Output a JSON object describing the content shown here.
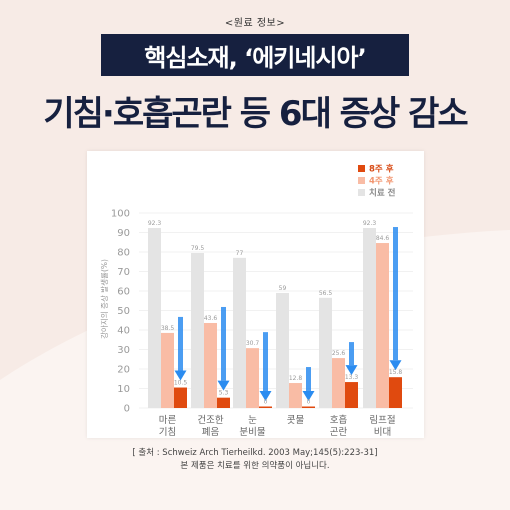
{
  "header": {
    "source_tag": "<원료 정보>",
    "title": "핵심소재, ‘에키네시아’",
    "headline": "기침·호흡곤란 등 6대 증상 감소"
  },
  "colors": {
    "background": "#f7ebe6",
    "title_bg": "#16203f",
    "series_8w": "#e04a0f",
    "series_4w": "#f9bca5",
    "series_base": "#e4e4e4",
    "arrow": "#2b8cf0"
  },
  "chart_data": {
    "type": "bar",
    "ylabel": "강아지의 증상 발생률(%)",
    "ylim": [
      0,
      100
    ],
    "yticks": [
      0,
      10,
      20,
      30,
      40,
      50,
      60,
      70,
      80,
      90,
      100
    ],
    "grid": true,
    "legend_position": "top-right",
    "categories": [
      [
        "마른",
        "기침"
      ],
      [
        "건조한",
        "폐음"
      ],
      [
        "눈",
        "분비물"
      ],
      [
        "콧물"
      ],
      [
        "호흡",
        "곤란"
      ],
      [
        "림프절",
        "비대"
      ]
    ],
    "series": [
      {
        "name": "치료 전",
        "values": [
          92.3,
          79.5,
          77,
          59,
          56.5,
          92.3
        ],
        "labels": [
          "92.3",
          "79.5",
          "77",
          "59",
          "56.5",
          "92.3"
        ]
      },
      {
        "name": "4주 후",
        "values": [
          38.5,
          43.6,
          30.7,
          12.8,
          25.6,
          84.6
        ],
        "labels": [
          "38.5",
          "43.6",
          "30.7",
          "12.8",
          "25.6",
          "84.6"
        ]
      },
      {
        "name": "8주 후",
        "values": [
          10.5,
          5.3,
          0,
          0,
          13.3,
          15.8
        ],
        "labels": [
          "10.5",
          "5.3",
          "0",
          "0",
          "13.3",
          "15.8"
        ]
      }
    ],
    "legend": [
      "8주 후",
      "4주 후",
      "치료 전"
    ]
  },
  "footer": {
    "citation": "[ 출처 : Schweiz Arch Tierheilkd. 2003 May;145(5):223-31]",
    "disclaimer": "본 제품은 치료를 위한 의약품이 아닙니다."
  }
}
